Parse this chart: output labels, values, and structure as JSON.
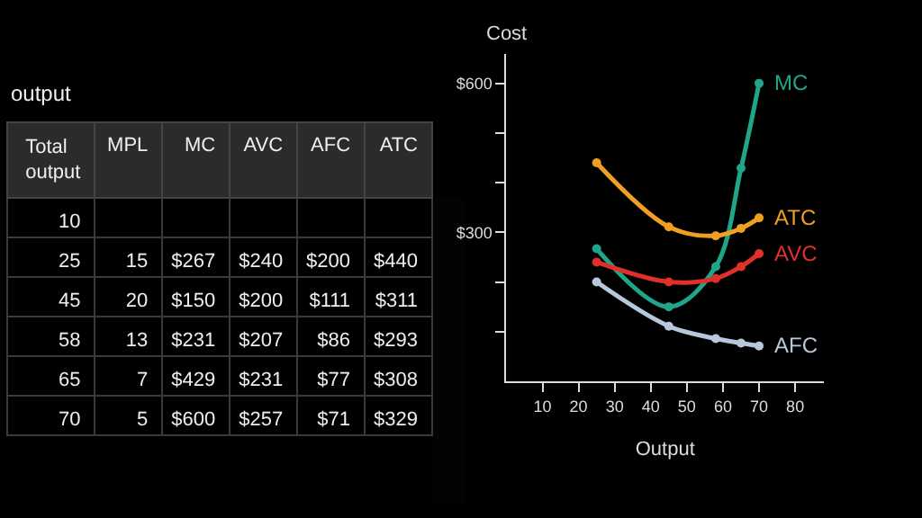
{
  "chart_data": [
    {
      "type": "other",
      "title": "output",
      "categories": [
        "Total output",
        "MPL",
        "MC",
        "AVC",
        "AFC",
        "ATC"
      ],
      "cells": [
        [
          "10",
          null,
          null,
          null,
          null,
          null
        ],
        [
          "25",
          "15",
          "$267",
          "$240",
          "$200",
          "$440"
        ],
        [
          "45",
          "20",
          "$150",
          "$200",
          "$111",
          "$311"
        ],
        [
          "58",
          "13",
          "$231",
          "$207",
          "$86",
          "$293"
        ],
        [
          "65",
          "7",
          "$429",
          "$231",
          "$77",
          "$308"
        ],
        [
          "70",
          "5",
          "$600",
          "$257",
          "$71",
          "$329"
        ]
      ]
    },
    {
      "type": "line",
      "xlabel": "Output",
      "ylabel": "Cost",
      "x": [
        25,
        45,
        58,
        65,
        70
      ],
      "series": [
        {
          "name": "MC",
          "color": "#1fa58a",
          "values": [
            267,
            150,
            231,
            429,
            600
          ]
        },
        {
          "name": "ATC",
          "color": "#f0a020",
          "values": [
            440,
            311,
            293,
            308,
            329
          ]
        },
        {
          "name": "AVC",
          "color": "#e0302a",
          "values": [
            240,
            200,
            207,
            231,
            257
          ]
        },
        {
          "name": "AFC",
          "color": "#b8c8dc",
          "values": [
            200,
            111,
            86,
            77,
            71
          ]
        }
      ],
      "xlim": [
        0,
        88
      ],
      "ylim": [
        0,
        660
      ],
      "xticks": [
        10,
        20,
        30,
        40,
        50,
        60,
        70,
        80
      ],
      "yticks": [
        {
          "value": 100,
          "label": null
        },
        {
          "value": 200,
          "label": null
        },
        {
          "value": 300,
          "label": "$300"
        },
        {
          "value": 400,
          "label": null
        },
        {
          "value": 500,
          "label": null
        },
        {
          "value": 600,
          "label": "$600"
        }
      ],
      "marker": "circle",
      "grid": false,
      "legend": false
    }
  ]
}
